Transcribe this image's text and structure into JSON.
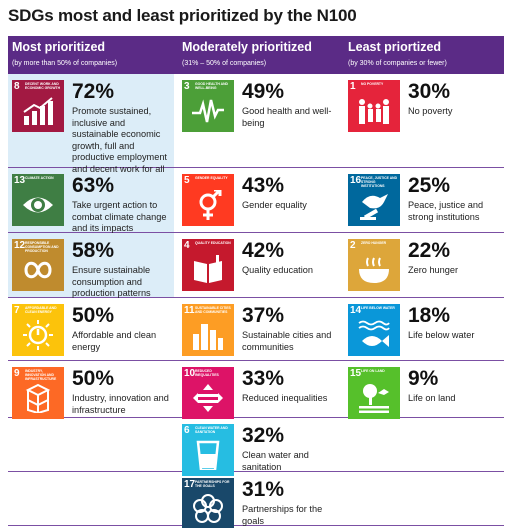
{
  "title": "SDGs most and least prioritized by the N100",
  "columns": [
    {
      "heading": "Most prioritized",
      "subheading": "(by more than 50% of companies)"
    },
    {
      "heading": "Moderately prioritized",
      "subheading": "(31% – 50% of companies)"
    },
    {
      "heading": "Least priortized",
      "subheading": "(by 30% of companies or fewer)"
    }
  ],
  "most": [
    {
      "num": "8",
      "label": "Decent work and economic growth",
      "color": "#a21942",
      "icon": "growth-chart-icon",
      "pct": "72%",
      "desc": "Promote sustained, inclusive and sustainable economic growth, full and productive employment and decent work for all"
    },
    {
      "num": "13",
      "label": "Climate action",
      "color": "#3f7e44",
      "icon": "eye-globe-icon",
      "pct": "63%",
      "desc": "Take urgent action to combat climate change and its impacts"
    },
    {
      "num": "12",
      "label": "Responsible consumption and production",
      "color": "#bf8b2e",
      "icon": "infinity-icon",
      "pct": "58%",
      "desc": "Ensure sustainable consumption and production patterns"
    },
    {
      "num": "7",
      "label": "Affordable and clean energy",
      "color": "#fcc30b",
      "icon": "sun-power-icon",
      "pct": "50%",
      "desc": "Affordable and clean energy"
    },
    {
      "num": "9",
      "label": "Industry, innovation and infrastructure",
      "color": "#fd6925",
      "icon": "cubes-icon",
      "pct": "50%",
      "desc": "Industry, innovation and infrastructure"
    }
  ],
  "moderate": [
    {
      "num": "3",
      "label": "Good health and well-being",
      "color": "#4c9f38",
      "icon": "heartbeat-icon",
      "pct": "49%",
      "desc": "Good health and well-being"
    },
    {
      "num": "5",
      "label": "Gender equality",
      "color": "#ff3a21",
      "icon": "gender-icon",
      "pct": "43%",
      "desc": "Gender equality"
    },
    {
      "num": "4",
      "label": "Quality education",
      "color": "#c5192d",
      "icon": "book-icon",
      "pct": "42%",
      "desc": "Quality education"
    },
    {
      "num": "11",
      "label": "Sustainable cities and communities",
      "color": "#fd9d24",
      "icon": "city-icon",
      "pct": "37%",
      "desc": "Sustainable cities and communities"
    },
    {
      "num": "10",
      "label": "Reduced inequalities",
      "color": "#dd1367",
      "icon": "equality-icon",
      "pct": "33%",
      "desc": "Reduced inequalities"
    },
    {
      "num": "6",
      "label": "Clean water and sanitation",
      "color": "#26bde2",
      "icon": "water-glass-icon",
      "pct": "32%",
      "desc": "Clean water and sanitation"
    },
    {
      "num": "17",
      "label": "Partnerships for the goals",
      "color": "#19486a",
      "icon": "flower-rings-icon",
      "pct": "31%",
      "desc": "Partnerships for the goals"
    }
  ],
  "least": [
    {
      "num": "1",
      "label": "No poverty",
      "color": "#e5243b",
      "icon": "family-icon",
      "pct": "30%",
      "desc": "No poverty"
    },
    {
      "num": "16",
      "label": "Peace, justice and strong institutions",
      "color": "#00689d",
      "icon": "dove-gavel-icon",
      "pct": "25%",
      "desc": "Peace, justice and strong institutions"
    },
    {
      "num": "2",
      "label": "Zero hunger",
      "color": "#dda63a",
      "icon": "bowl-icon",
      "pct": "22%",
      "desc": "Zero hunger"
    },
    {
      "num": "14",
      "label": "Life below water",
      "color": "#0a97d9",
      "icon": "fish-icon",
      "pct": "18%",
      "desc": "Life below water"
    },
    {
      "num": "15",
      "label": "Life on land",
      "color": "#56c02b",
      "icon": "tree-bird-icon",
      "pct": "9%",
      "desc": "Life on land"
    }
  ]
}
